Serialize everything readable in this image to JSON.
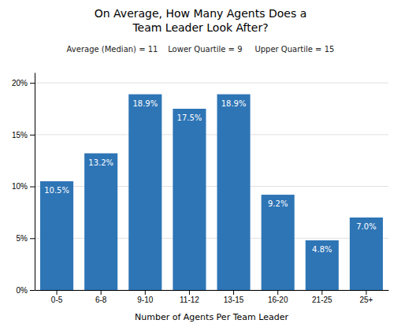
{
  "chart_data": {
    "type": "bar",
    "title": "On Average, How Many Agents Does a\nTeam Leader Look After?",
    "subtitle": "Average (Median) = 11    Lower Quartile = 9     Upper Quartile = 15",
    "categories": [
      "0-5",
      "6-8",
      "9-10",
      "11-12",
      "13-15",
      "16-20",
      "21-25",
      "25+"
    ],
    "values": [
      10.5,
      13.2,
      18.9,
      17.5,
      18.9,
      9.2,
      4.8,
      7.0
    ],
    "value_labels": [
      "10.5%",
      "13.2%",
      "18.9%",
      "17.5%",
      "18.9%",
      "9.2%",
      "4.8%",
      "7.0%"
    ],
    "data_labels": true,
    "color": "#2E75B6",
    "xlabel": "Number of Agents Per Team Leader",
    "ylim": [
      0,
      21
    ],
    "yticks": [
      {
        "value": 0,
        "label": "0%"
      },
      {
        "value": 5,
        "label": "5%"
      },
      {
        "value": 10,
        "label": "10%"
      },
      {
        "value": 15,
        "label": "15%"
      },
      {
        "value": 20,
        "label": "20%"
      }
    ],
    "grid": true
  }
}
